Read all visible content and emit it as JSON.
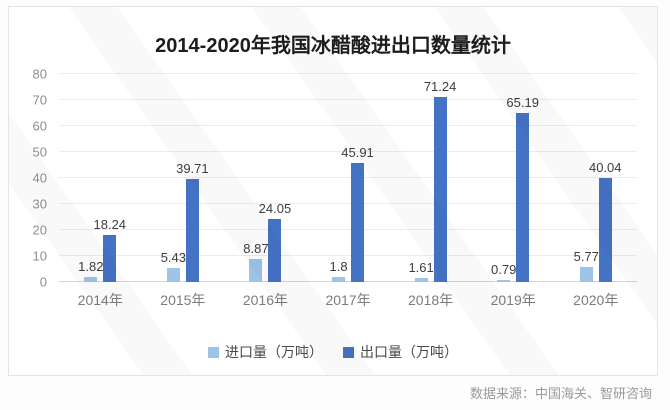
{
  "page": {
    "source_note": "数据来源：中国海关、智研咨询"
  },
  "chart_data": {
    "type": "bar",
    "title": "2014-2020年我国冰醋酸进出口数量统计",
    "categories": [
      "2014年",
      "2015年",
      "2016年",
      "2017年",
      "2018年",
      "2019年",
      "2020年"
    ],
    "series": [
      {
        "key": "import",
        "name": "进口量（万吨）",
        "color": "#9dc3e6",
        "values": [
          1.82,
          5.43,
          8.87,
          1.8,
          1.61,
          0.79,
          5.77
        ]
      },
      {
        "key": "export",
        "name": "出口量（万吨）",
        "color": "#4472c4",
        "values": [
          18.24,
          39.71,
          24.05,
          45.91,
          71.24,
          65.19,
          40.04
        ]
      }
    ],
    "ylim": [
      0,
      80
    ],
    "yticks": [
      0,
      10,
      20,
      30,
      40,
      50,
      60,
      70,
      80
    ],
    "grid": true,
    "legend_position": "bottom",
    "value_labels": true
  }
}
